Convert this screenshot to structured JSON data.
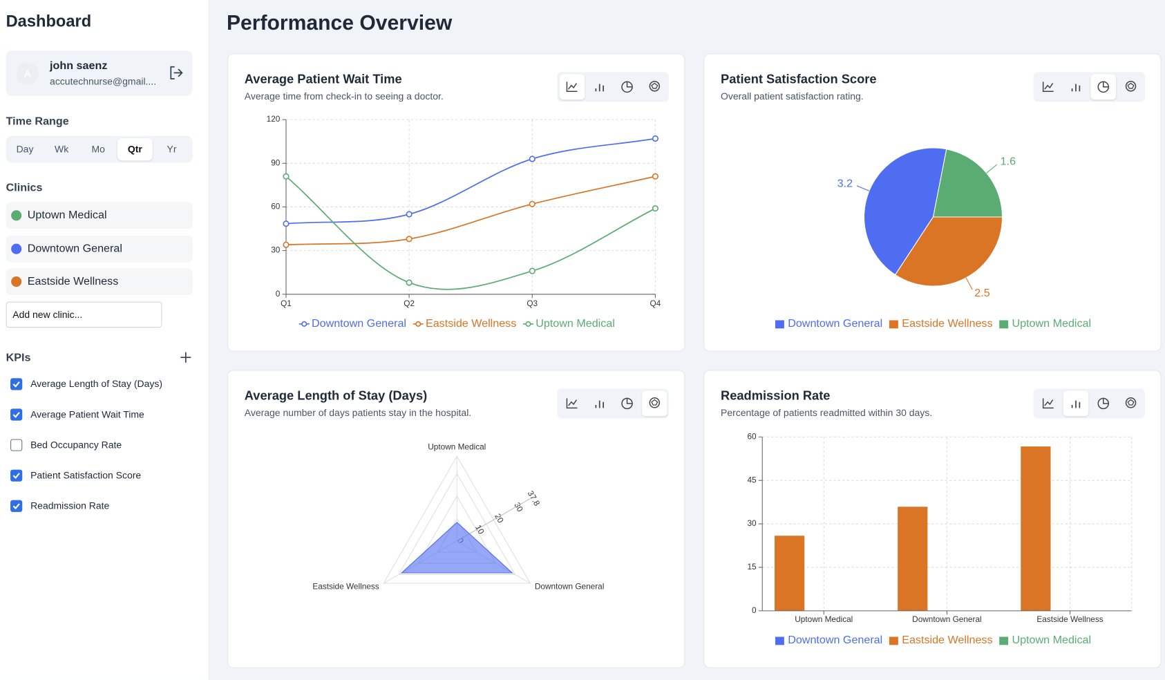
{
  "sidebar": {
    "title": "Dashboard",
    "user": {
      "avatar": "A",
      "name": "john saenz",
      "email": "accutechnurse@gmail...."
    },
    "time_range": {
      "label": "Time Range",
      "options": [
        "Day",
        "Wk",
        "Mo",
        "Qtr",
        "Yr"
      ],
      "selected": 3
    },
    "clinics": {
      "label": "Clinics",
      "items": [
        {
          "name": "Uptown Medical",
          "color": "#5aac72"
        },
        {
          "name": "Downtown General",
          "color": "#4f6df0"
        },
        {
          "name": "Eastside Wellness",
          "color": "#d97524"
        }
      ],
      "input_placeholder": "Add new clinic..."
    },
    "kpis": {
      "label": "KPIs",
      "items": [
        {
          "label": "Average Length of Stay (Days)",
          "checked": true
        },
        {
          "label": "Average Patient Wait Time",
          "checked": true
        },
        {
          "label": "Bed Occupancy Rate",
          "checked": false
        },
        {
          "label": "Patient Satisfaction Score",
          "checked": true
        },
        {
          "label": "Readmission Rate",
          "checked": true
        }
      ]
    }
  },
  "main_title": "Performance Overview",
  "chart_data": [
    {
      "type": "line",
      "title": "Average Patient Wait Time",
      "subtitle": "Average time from check-in to seeing a doctor.",
      "categories": [
        "Q1",
        "Q2",
        "Q3",
        "Q4"
      ],
      "ylim": [
        0,
        120
      ],
      "yticks": [
        0,
        30,
        60,
        90,
        120
      ],
      "grid": true,
      "series": [
        {
          "name": "Downtown General",
          "color": "#4f6df0",
          "values": [
            48.5,
            55,
            93,
            107
          ]
        },
        {
          "name": "Eastside Wellness",
          "color": "#d97524",
          "values": [
            34,
            38,
            62,
            81
          ]
        },
        {
          "name": "Uptown Medical",
          "color": "#5aac72",
          "values": [
            81,
            8,
            16,
            59
          ]
        }
      ]
    },
    {
      "type": "pie",
      "title": "Patient Satisfaction Score",
      "subtitle": "Overall patient satisfaction rating.",
      "categories": [
        "Downtown General",
        "Eastside Wellness",
        "Uptown Medical"
      ],
      "values": [
        3.2,
        2.5,
        1.6
      ],
      "colors": [
        "#4f6df0",
        "#d97524",
        "#5aac72"
      ]
    },
    {
      "type": "radar",
      "title": "Average Length of Stay (Days)",
      "subtitle": "Average number of days patients stay in the hospital.",
      "categories": [
        "Uptown Medical",
        "Downtown General",
        "Eastside Wellness"
      ],
      "values": [
        8.3,
        28.5,
        28.5
      ],
      "color": "#4f6df0",
      "rlim": [
        0,
        37.8
      ],
      "rticks": [
        0,
        10,
        20,
        30,
        37.8
      ]
    },
    {
      "type": "bar",
      "title": "Readmission Rate",
      "subtitle": "Percentage of patients readmitted within 30 days.",
      "categories": [
        "Uptown Medical",
        "Downtown General",
        "Eastside Wellness"
      ],
      "ylim": [
        0,
        60
      ],
      "yticks": [
        0,
        15,
        30,
        45,
        60
      ],
      "grid": true,
      "series": [
        {
          "name": "Downtown General",
          "color": "#4f6df0",
          "values": [
            null,
            null,
            null
          ]
        },
        {
          "name": "Eastside Wellness",
          "color": "#d97524",
          "values": [
            25.9,
            35.9,
            56.7
          ]
        },
        {
          "name": "Uptown Medical",
          "color": "#5aac72",
          "values": [
            null,
            null,
            null
          ]
        }
      ]
    }
  ]
}
